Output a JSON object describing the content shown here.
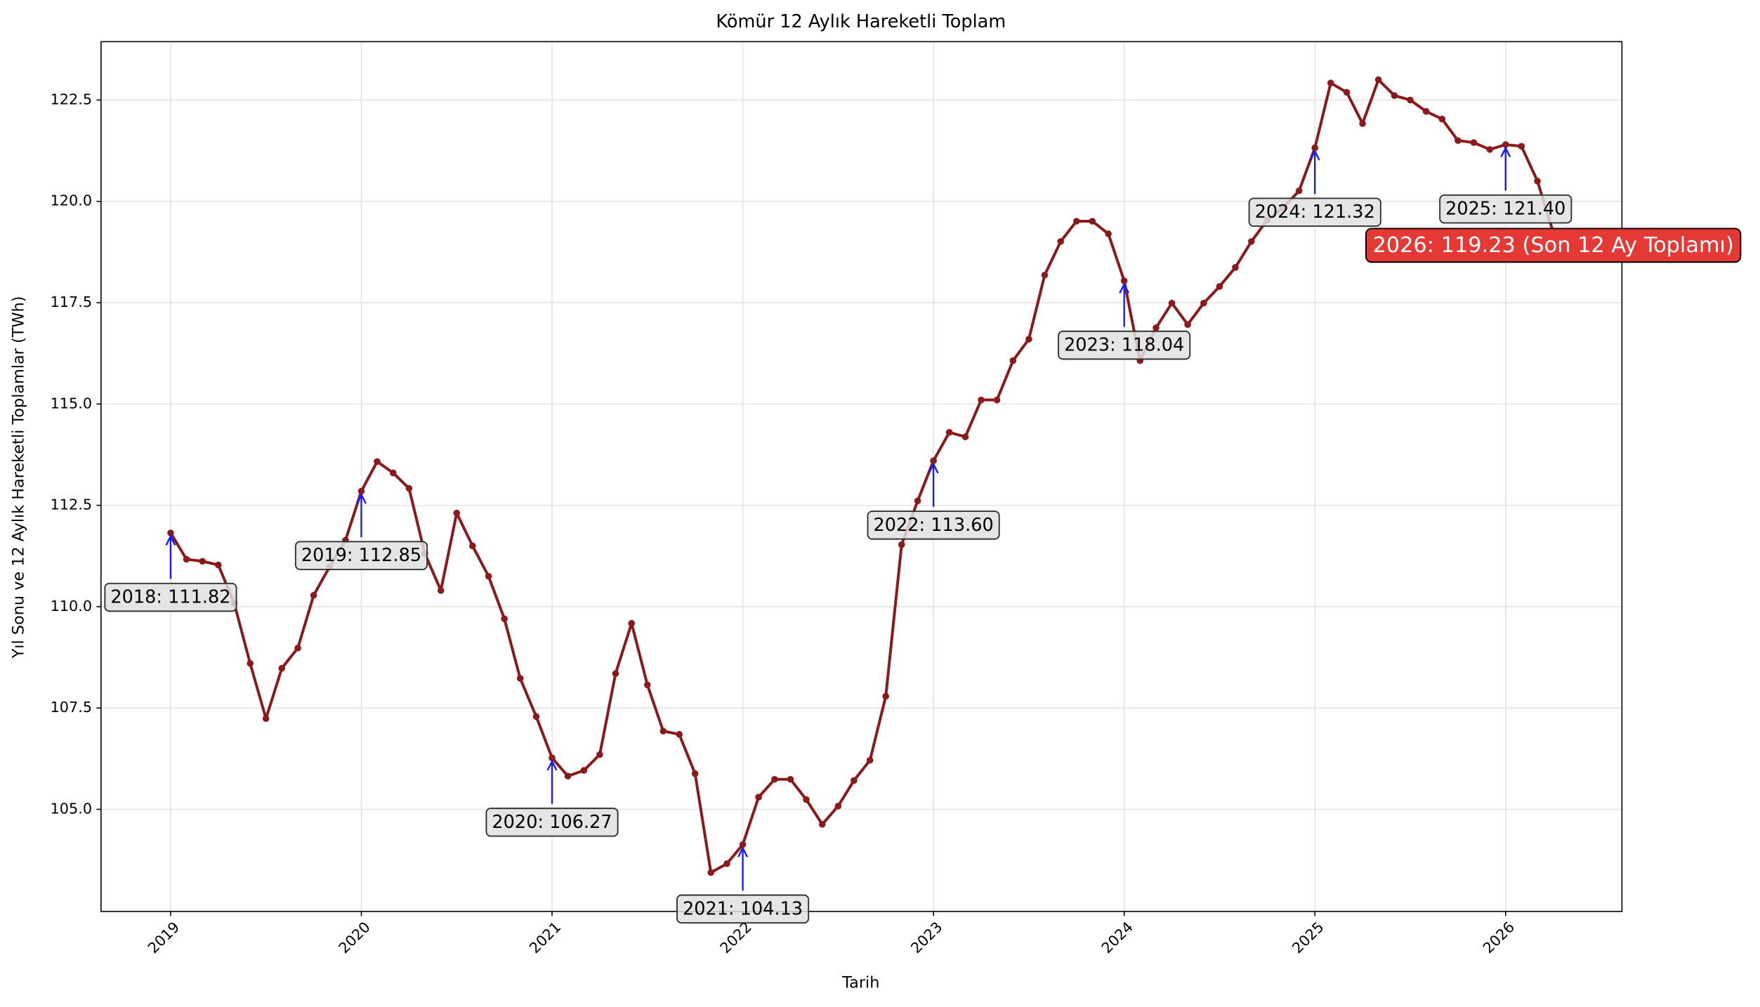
{
  "chart_data": {
    "type": "line",
    "title": "Kömür 12 Aylık Hareketli Toplam",
    "x_label": "Tarih",
    "y_label": "Yıl Sonu ve 12 Aylık Hareketli Toplamlar (TWh)",
    "color": "#8b1a1a",
    "grid": true,
    "xlim": [
      2018.635,
      2026.61
    ],
    "ylim": [
      102.48,
      123.94
    ],
    "xticks": [
      2019,
      2020,
      2021,
      2022,
      2023,
      2024,
      2025,
      2026
    ],
    "yticks": [
      {
        "value": 105,
        "label": "105.0"
      },
      {
        "value": 107.5,
        "label": "107.5"
      },
      {
        "value": 110,
        "label": "110.0"
      },
      {
        "value": 112.5,
        "label": "112.5"
      },
      {
        "value": 115,
        "label": "115.0"
      },
      {
        "value": 117.5,
        "label": "117.5"
      },
      {
        "value": 120,
        "label": "120.0"
      },
      {
        "value": 122.5,
        "label": "122.5"
      }
    ],
    "x": [
      2019,
      2019.083,
      2019.167,
      2019.25,
      2019.333,
      2019.417,
      2019.5,
      2019.583,
      2019.667,
      2019.75,
      2019.833,
      2019.917,
      2020,
      2020.083,
      2020.167,
      2020.25,
      2020.333,
      2020.417,
      2020.5,
      2020.583,
      2020.667,
      2020.75,
      2020.833,
      2020.917,
      2021,
      2021.083,
      2021.167,
      2021.25,
      2021.333,
      2021.417,
      2021.5,
      2021.583,
      2021.667,
      2021.75,
      2021.833,
      2021.917,
      2022,
      2022.083,
      2022.167,
      2022.25,
      2022.333,
      2022.417,
      2022.5,
      2022.583,
      2022.667,
      2022.75,
      2022.833,
      2022.917,
      2023,
      2023.083,
      2023.167,
      2023.25,
      2023.333,
      2023.417,
      2023.5,
      2023.583,
      2023.667,
      2023.75,
      2023.833,
      2023.917,
      2024,
      2024.083,
      2024.167,
      2024.25,
      2024.333,
      2024.417,
      2024.5,
      2024.583,
      2024.667,
      2024.75,
      2024.833,
      2024.917,
      2025,
      2025.083,
      2025.167,
      2025.25,
      2025.333,
      2025.417,
      2025.5,
      2025.583,
      2025.667,
      2025.75,
      2025.833,
      2025.917,
      2026,
      2026.083,
      2026.167,
      2026.25
    ],
    "values": [
      111.82,
      111.17,
      111.12,
      111.03,
      110.09,
      108.6,
      107.24,
      108.48,
      108.98,
      110.28,
      110.98,
      111.64,
      112.85,
      113.58,
      113.3,
      112.92,
      111.31,
      110.4,
      112.31,
      111.5,
      110.75,
      109.7,
      108.23,
      107.29,
      106.27,
      105.82,
      105.96,
      106.35,
      108.35,
      109.59,
      108.07,
      106.93,
      106.85,
      105.88,
      103.44,
      103.66,
      104.13,
      105.3,
      105.74,
      105.74,
      105.24,
      104.63,
      105.08,
      105.71,
      106.21,
      107.79,
      111.53,
      112.61,
      113.6,
      114.3,
      114.19,
      115.1,
      115.1,
      116.07,
      116.6,
      118.18,
      119.01,
      119.51,
      119.51,
      119.2,
      118.04,
      116.07,
      116.88,
      117.49,
      116.96,
      117.49,
      117.9,
      118.37,
      119.01,
      119.54,
      119.84,
      120.26,
      121.32,
      122.92,
      122.69,
      121.92,
      123.0,
      122.61,
      122.5,
      122.22,
      122.03,
      121.5,
      121.45,
      121.28,
      121.4,
      121.36,
      120.5,
      119.23
    ],
    "annotations": [
      {
        "label": "2018: 111.82",
        "x": 2019,
        "y": 111.82
      },
      {
        "label": "2019: 112.85",
        "x": 2020,
        "y": 112.85
      },
      {
        "label": "2020: 106.27",
        "x": 2021,
        "y": 106.27
      },
      {
        "label": "2021: 104.13",
        "x": 2022,
        "y": 104.13
      },
      {
        "label": "2022: 113.60",
        "x": 2023,
        "y": 113.6
      },
      {
        "label": "2023: 118.04",
        "x": 2024,
        "y": 118.04
      },
      {
        "label": "2024: 121.32",
        "x": 2025,
        "y": 121.32
      },
      {
        "label": "2025: 121.40",
        "x": 2026,
        "y": 121.4
      }
    ],
    "annotation_color": "#1a1aff",
    "final_annotation": {
      "label": "2026: 119.23 (Son 12 Ay Toplamı)",
      "x": 2026.25,
      "y": 119.23,
      "color": "#e53935"
    }
  }
}
